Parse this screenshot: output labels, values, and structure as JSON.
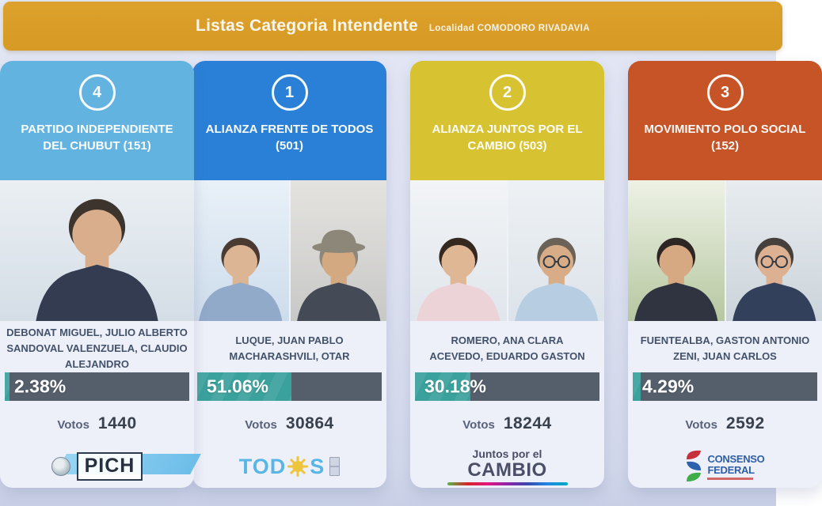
{
  "header": {
    "title": "Listas Categoria Intendente",
    "locality": "Localidad COMODORO RIVADAVIA"
  },
  "votes_label": "Votos",
  "colors": {
    "header_bg": "#dca12c",
    "bar_fill": "#3ba19c",
    "bar_track": "#555e6b",
    "background": "#dde1f0"
  },
  "cards": [
    {
      "number": "1",
      "party": "ALIANZA FRENTE DE TODOS (501)",
      "color": "#2a80d6",
      "candidates": [
        "LUQUE, JUAN PABLO",
        "MACHARASHVILI, OTAR"
      ],
      "percent_label": "51.06%",
      "percent": 51.06,
      "votes": "30864",
      "photos": [
        {
          "bg": [
            "#e9f1f8",
            "#cddcec"
          ],
          "hair": "#4a3a31",
          "skin": "#dcb694",
          "shirt": "#92aac9"
        },
        {
          "bg": [
            "#e4e3e0",
            "#c8c8c6"
          ],
          "hair": "#8d8779",
          "skin": "#d3a982",
          "shirt": "#454a57",
          "hat": true
        }
      ],
      "logo": {
        "type": "todos",
        "text_before": "TOD",
        "text_after": "S"
      }
    },
    {
      "number": "2",
      "party": "ALIANZA JUNTOS POR EL CAMBIO (503)",
      "color": "#d7c331",
      "candidates": [
        "ROMERO, ANA CLARA",
        "ACEVEDO, EDUARDO GASTON"
      ],
      "percent_label": "30.18%",
      "percent": 30.18,
      "votes": "18244",
      "photos": [
        {
          "bg": [
            "#f2f4f6",
            "#e0e6ec"
          ],
          "hair": "#35291f",
          "skin": "#e0b795",
          "shirt": "#ecd3d8"
        },
        {
          "bg": [
            "#eef1f4",
            "#dce3ea"
          ],
          "hair": "#6b6257",
          "skin": "#d8ac87",
          "shirt": "#b7cde2",
          "glasses": true
        }
      ],
      "logo": {
        "type": "cambio",
        "line1": "Juntos por el",
        "line2": "CAMBIO"
      }
    },
    {
      "number": "3",
      "party": "MOVIMIENTO POLO SOCIAL (152)",
      "color": "#c65426",
      "candidates": [
        "FUENTEALBA, GASTON ANTONIO",
        "ZENI, JUAN CARLOS"
      ],
      "percent_label": "4.29%",
      "percent": 4.29,
      "votes": "2592",
      "photos": [
        {
          "bg": [
            "#eef2e6",
            "#b6c7a0"
          ],
          "hair": "#2e2623",
          "skin": "#d7a983",
          "shirt": "#2f3440"
        },
        {
          "bg": [
            "#e8ecef",
            "#cbd4db"
          ],
          "hair": "#45403b",
          "skin": "#dcb090",
          "shirt": "#33405c",
          "glasses": true
        }
      ],
      "logo": {
        "type": "consenso",
        "line1": "CONSENSO",
        "line2": "FEDERAL"
      }
    },
    {
      "number": "4",
      "party": "PARTIDO INDEPENDIENTE DEL CHUBUT (151)",
      "color": "#63b3e0",
      "candidates": [
        "DEBONAT MIGUEL, JULIO ALBERTO",
        "SANDOVAL VALENZUELA, CLAUDIO ALEJANDRO"
      ],
      "percent_label": "2.38%",
      "percent": 2.38,
      "votes": "1440",
      "photos": [
        {
          "bg": [
            "#eaeff3",
            "#d4dde6"
          ],
          "hair": "#3e342e",
          "skin": "#d9ae8c",
          "shirt": "#333c50"
        }
      ],
      "logo": {
        "type": "pich",
        "text": "PICH"
      }
    }
  ]
}
